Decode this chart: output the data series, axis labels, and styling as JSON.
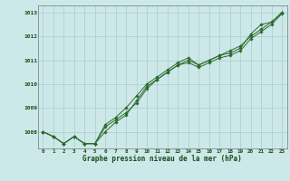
{
  "x": [
    0,
    1,
    2,
    3,
    4,
    5,
    6,
    7,
    8,
    9,
    10,
    11,
    12,
    13,
    14,
    15,
    16,
    17,
    18,
    19,
    20,
    21,
    22,
    23
  ],
  "line1": [
    1008.0,
    1007.8,
    1007.5,
    1007.8,
    1007.5,
    1007.5,
    1008.2,
    1008.5,
    1008.8,
    1009.2,
    1009.8,
    1010.2,
    1010.5,
    1010.8,
    1011.0,
    1010.8,
    1011.0,
    1011.2,
    1011.3,
    1011.5,
    1012.1,
    1012.5,
    1012.6,
    1013.0
  ],
  "line2": [
    1008.0,
    1007.8,
    1007.5,
    1007.8,
    1007.5,
    1007.5,
    1008.3,
    1008.6,
    1009.0,
    1009.5,
    1010.0,
    1010.3,
    1010.6,
    1010.9,
    1011.1,
    1010.8,
    1011.0,
    1011.2,
    1011.4,
    1011.6,
    1012.0,
    1012.3,
    1012.6,
    1013.0
  ],
  "line3": [
    1008.0,
    1007.8,
    1007.5,
    1007.8,
    1007.5,
    1007.5,
    1008.0,
    1008.4,
    1008.7,
    1009.3,
    1009.9,
    1010.2,
    1010.5,
    1010.8,
    1010.9,
    1010.7,
    1010.9,
    1011.1,
    1011.2,
    1011.4,
    1011.9,
    1012.2,
    1012.5,
    1012.95
  ],
  "ylim": [
    1007.3,
    1013.3
  ],
  "yticks": [
    1008,
    1009,
    1010,
    1011,
    1012,
    1013
  ],
  "xticks": [
    0,
    1,
    2,
    3,
    4,
    5,
    6,
    7,
    8,
    9,
    10,
    11,
    12,
    13,
    14,
    15,
    16,
    17,
    18,
    19,
    20,
    21,
    22,
    23
  ],
  "xlim": [
    -0.5,
    23.5
  ],
  "line_color": "#2d6a2d",
  "bg_color": "#cce8e8",
  "grid_color": "#aacccc",
  "xlabel": "Graphe pression niveau de la mer (hPa)",
  "xlabel_color": "#1a4a1a",
  "tick_color": "#1a4a1a",
  "marker": "D",
  "marker_size": 1.8,
  "linewidth": 0.7
}
